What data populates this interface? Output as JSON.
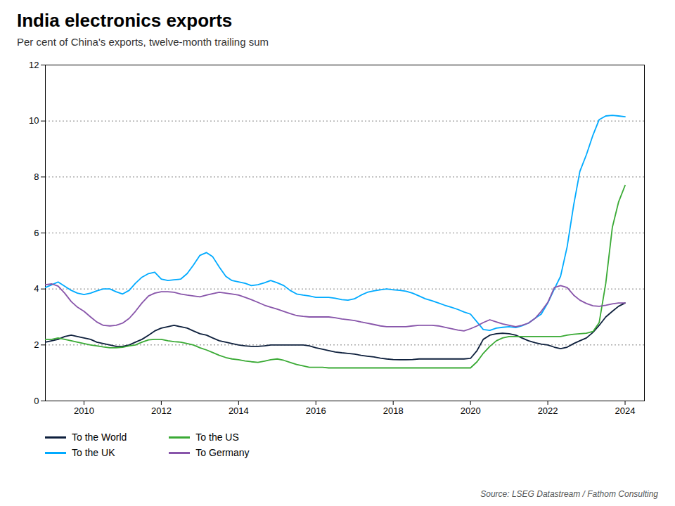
{
  "chart_data": {
    "type": "line",
    "title": "India electronics exports",
    "subtitle": "Per cent of China's exports, twelve-month trailing sum",
    "source": "Source: LSEG Datastream / Fathom Consulting",
    "x": [
      2009.0,
      2009.17,
      2009.33,
      2009.5,
      2009.67,
      2009.83,
      2010.0,
      2010.17,
      2010.33,
      2010.5,
      2010.67,
      2010.83,
      2011.0,
      2011.17,
      2011.33,
      2011.5,
      2011.67,
      2011.83,
      2012.0,
      2012.17,
      2012.33,
      2012.5,
      2012.67,
      2012.83,
      2013.0,
      2013.17,
      2013.33,
      2013.5,
      2013.67,
      2013.83,
      2014.0,
      2014.17,
      2014.33,
      2014.5,
      2014.67,
      2014.83,
      2015.0,
      2015.17,
      2015.33,
      2015.5,
      2015.67,
      2015.83,
      2016.0,
      2016.17,
      2016.33,
      2016.5,
      2016.67,
      2016.83,
      2017.0,
      2017.17,
      2017.33,
      2017.5,
      2017.67,
      2017.83,
      2018.0,
      2018.17,
      2018.33,
      2018.5,
      2018.67,
      2018.83,
      2019.0,
      2019.17,
      2019.33,
      2019.5,
      2019.67,
      2019.83,
      2020.0,
      2020.17,
      2020.33,
      2020.5,
      2020.67,
      2020.83,
      2021.0,
      2021.17,
      2021.33,
      2021.5,
      2021.67,
      2021.83,
      2022.0,
      2022.17,
      2022.33,
      2022.5,
      2022.67,
      2022.83,
      2023.0,
      2023.17,
      2023.33,
      2023.5,
      2023.67,
      2023.83,
      2024.0
    ],
    "series": [
      {
        "name": "To the World",
        "color": "#0d1f3c",
        "values": [
          2.1,
          2.15,
          2.2,
          2.3,
          2.35,
          2.3,
          2.25,
          2.2,
          2.1,
          2.05,
          2.0,
          1.95,
          1.95,
          2.0,
          2.1,
          2.2,
          2.35,
          2.5,
          2.6,
          2.65,
          2.7,
          2.65,
          2.6,
          2.5,
          2.4,
          2.35,
          2.25,
          2.15,
          2.1,
          2.05,
          2.0,
          1.97,
          1.95,
          1.95,
          1.97,
          2.0,
          2.0,
          2.0,
          2.0,
          2.0,
          2.0,
          1.97,
          1.9,
          1.85,
          1.8,
          1.75,
          1.72,
          1.7,
          1.67,
          1.63,
          1.6,
          1.57,
          1.53,
          1.5,
          1.48,
          1.47,
          1.47,
          1.48,
          1.5,
          1.5,
          1.5,
          1.5,
          1.5,
          1.5,
          1.5,
          1.5,
          1.52,
          1.8,
          2.2,
          2.35,
          2.4,
          2.42,
          2.4,
          2.35,
          2.25,
          2.15,
          2.08,
          2.03,
          2.0,
          1.92,
          1.87,
          1.92,
          2.05,
          2.15,
          2.25,
          2.45,
          2.7,
          3.0,
          3.2,
          3.38,
          3.5
        ]
      },
      {
        "name": "To the US",
        "color": "#3aaa35",
        "values": [
          2.2,
          2.2,
          2.25,
          2.2,
          2.15,
          2.1,
          2.05,
          2.0,
          1.97,
          1.93,
          1.9,
          1.9,
          1.92,
          1.97,
          2.0,
          2.1,
          2.18,
          2.2,
          2.2,
          2.15,
          2.12,
          2.1,
          2.05,
          2.0,
          1.9,
          1.82,
          1.73,
          1.63,
          1.55,
          1.5,
          1.47,
          1.43,
          1.4,
          1.38,
          1.42,
          1.47,
          1.5,
          1.45,
          1.38,
          1.3,
          1.25,
          1.2,
          1.2,
          1.2,
          1.18,
          1.18,
          1.18,
          1.18,
          1.18,
          1.18,
          1.18,
          1.18,
          1.18,
          1.18,
          1.18,
          1.18,
          1.18,
          1.18,
          1.18,
          1.18,
          1.18,
          1.18,
          1.18,
          1.18,
          1.18,
          1.18,
          1.18,
          1.4,
          1.7,
          1.95,
          2.15,
          2.25,
          2.3,
          2.3,
          2.3,
          2.3,
          2.3,
          2.3,
          2.3,
          2.3,
          2.3,
          2.35,
          2.38,
          2.4,
          2.42,
          2.48,
          2.8,
          4.2,
          6.2,
          7.1,
          7.7
        ]
      },
      {
        "name": "To the UK",
        "color": "#00aaff",
        "values": [
          4.05,
          4.15,
          4.25,
          4.1,
          3.95,
          3.85,
          3.8,
          3.85,
          3.93,
          4.0,
          4.0,
          3.9,
          3.82,
          3.95,
          4.2,
          4.42,
          4.55,
          4.6,
          4.35,
          4.3,
          4.33,
          4.35,
          4.55,
          4.85,
          5.2,
          5.3,
          5.15,
          4.78,
          4.45,
          4.3,
          4.25,
          4.2,
          4.12,
          4.15,
          4.22,
          4.3,
          4.22,
          4.12,
          3.95,
          3.82,
          3.78,
          3.75,
          3.7,
          3.7,
          3.7,
          3.67,
          3.62,
          3.6,
          3.65,
          3.78,
          3.88,
          3.93,
          3.97,
          4.0,
          3.97,
          3.95,
          3.92,
          3.85,
          3.75,
          3.65,
          3.58,
          3.5,
          3.42,
          3.35,
          3.27,
          3.18,
          3.1,
          2.82,
          2.55,
          2.52,
          2.6,
          2.63,
          2.65,
          2.62,
          2.68,
          2.78,
          2.95,
          3.1,
          3.5,
          4.0,
          4.45,
          5.5,
          7.0,
          8.2,
          8.8,
          9.5,
          10.05,
          10.18,
          10.2,
          10.18,
          10.15
        ]
      },
      {
        "name": "To Germany",
        "color": "#8855aa",
        "values": [
          4.15,
          4.18,
          4.1,
          3.85,
          3.55,
          3.35,
          3.2,
          3.0,
          2.82,
          2.7,
          2.68,
          2.7,
          2.78,
          2.95,
          3.2,
          3.5,
          3.75,
          3.85,
          3.9,
          3.9,
          3.88,
          3.82,
          3.78,
          3.75,
          3.72,
          3.78,
          3.83,
          3.88,
          3.85,
          3.82,
          3.78,
          3.7,
          3.62,
          3.52,
          3.42,
          3.35,
          3.28,
          3.2,
          3.12,
          3.05,
          3.02,
          3.0,
          3.0,
          3.0,
          3.0,
          2.97,
          2.93,
          2.9,
          2.87,
          2.82,
          2.78,
          2.73,
          2.68,
          2.65,
          2.65,
          2.65,
          2.65,
          2.68,
          2.7,
          2.7,
          2.7,
          2.68,
          2.63,
          2.58,
          2.53,
          2.5,
          2.58,
          2.68,
          2.8,
          2.9,
          2.82,
          2.75,
          2.7,
          2.65,
          2.7,
          2.78,
          2.95,
          3.2,
          3.52,
          4.05,
          4.12,
          4.05,
          3.78,
          3.6,
          3.48,
          3.4,
          3.38,
          3.42,
          3.47,
          3.5,
          3.5
        ]
      }
    ],
    "xlim": [
      2009.0,
      2024.5
    ],
    "xticks": [
      2010,
      2012,
      2014,
      2016,
      2018,
      2020,
      2022,
      2024
    ],
    "ylim": [
      0,
      12
    ],
    "yticks": [
      0,
      2,
      4,
      6,
      8,
      10,
      12
    ],
    "grid": "y",
    "legend": "bottom"
  }
}
